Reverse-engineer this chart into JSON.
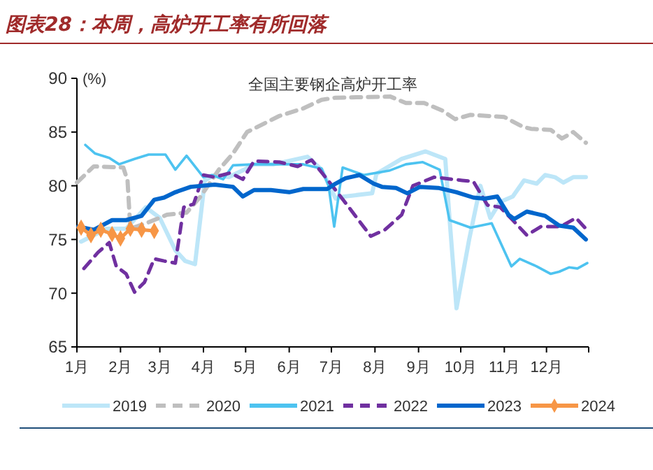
{
  "chart_data": {
    "type": "line",
    "title": "图表28：本周，高炉开工率有所回落",
    "subtitle": "全国主要钢企高炉开工率",
    "ylabel": "(%)",
    "xlim": [
      "--01-01",
      "--12-31"
    ],
    "xticks": [
      {
        "value": "--01-01",
        "label": "1月"
      },
      {
        "value": "--02-01",
        "label": "2月"
      },
      {
        "value": "--03-01",
        "label": "3月"
      },
      {
        "value": "--04-01",
        "label": "4月"
      },
      {
        "value": "--05-01",
        "label": "5月"
      },
      {
        "value": "--06-01",
        "label": "6月"
      },
      {
        "value": "--07-01",
        "label": "7月"
      },
      {
        "value": "--08-01",
        "label": "8月"
      },
      {
        "value": "--09-01",
        "label": "9月"
      },
      {
        "value": "--10-01",
        "label": "10月"
      },
      {
        "value": "--11-01",
        "label": "11月"
      },
      {
        "value": "--12-01",
        "label": "12月"
      },
      {
        "value": "--12-31",
        "label": null
      }
    ],
    "ylim": [
      65,
      90
    ],
    "yticks": [
      65,
      70,
      75,
      80,
      85,
      90
    ],
    "legend": "bottom",
    "series": [
      {
        "name": "2019",
        "color": "#bde6f8",
        "line_style": "solid",
        "x": [
          "--01-04",
          "--01-22",
          "--02-05",
          "--02-19",
          "--03-01",
          "--03-12",
          "--03-19",
          "--03-26",
          "--04-02",
          "--04-09",
          "--04-19",
          "--04-30",
          "--05-07",
          "--05-21",
          "--06-14",
          "--06-24",
          "--07-04",
          "--07-10",
          "--07-30",
          "--08-02",
          "--08-20",
          "--09-06",
          "--09-20",
          "--09-23",
          "--09-28",
          "--10-07",
          "--10-15",
          "--10-22",
          "--10-29",
          "--11-07",
          "--11-15",
          "--11-24",
          "--11-30",
          "--12-07",
          "--12-13",
          "--12-20",
          "--12-29"
        ],
        "values": [
          74.8,
          76,
          76,
          78,
          77,
          74,
          73,
          72.7,
          80.5,
          81,
          80.8,
          81.5,
          82,
          82,
          82.7,
          81.5,
          78.8,
          79,
          79.3,
          81.1,
          82.5,
          83.2,
          82.5,
          77,
          68.6,
          75,
          80,
          77,
          78.5,
          79,
          80.5,
          80.2,
          81,
          80.8,
          80.3,
          80.8,
          80.8
        ]
      },
      {
        "name": "2020",
        "color": "#bfbfbf",
        "line_style": "dashed",
        "x": [
          "--01-01",
          "--01-13",
          "--02-03",
          "--02-06",
          "--02-08",
          "--02-21",
          "--03-06",
          "--03-20",
          "--03-30",
          "--04-12",
          "--04-22",
          "--05-02",
          "--05-25",
          "--06-11",
          "--06-24",
          "--07-04",
          "--08-12",
          "--08-23",
          "--09-05",
          "--09-18",
          "--09-27",
          "--10-08",
          "--11-01",
          "--11-14",
          "--11-20",
          "--12-04",
          "--12-12",
          "--12-20",
          "--12-29"
        ],
        "values": [
          80.3,
          81.8,
          81.7,
          80.5,
          76,
          76.6,
          77.3,
          77.5,
          79,
          81.5,
          83,
          85,
          86.5,
          87.2,
          88,
          88.2,
          88.3,
          87.7,
          87.7,
          87,
          86.2,
          86.6,
          86.4,
          85.5,
          85.3,
          85.2,
          84.4,
          85,
          84
        ]
      },
      {
        "name": "2021",
        "color": "#4dc3f0",
        "line_style": "solid",
        "x": [
          "--01-07",
          "--01-14",
          "--01-24",
          "--01-31",
          "--02-11",
          "--02-21",
          "--03-05",
          "--03-12",
          "--03-20",
          "--04-01",
          "--04-07",
          "--04-15",
          "--04-22",
          "--05-08",
          "--05-25",
          "--06-11",
          "--06-24",
          "--06-29",
          "--07-03",
          "--07-09",
          "--07-24",
          "--08-11",
          "--08-23",
          "--09-04",
          "--09-16",
          "--09-23",
          "--10-08",
          "--10-23",
          "--11-06",
          "--11-12",
          "--11-24",
          "--12-04",
          "--12-10",
          "--12-17",
          "--12-23",
          "--12-30"
        ],
        "values": [
          83.8,
          83,
          82.6,
          82,
          82.5,
          82.9,
          82.9,
          81.5,
          82.8,
          80.8,
          81,
          80.6,
          81.9,
          82,
          82,
          82,
          81.6,
          80,
          76.2,
          81.7,
          81,
          81.4,
          82,
          82.2,
          81.5,
          76.8,
          76.1,
          76.5,
          72.5,
          73.2,
          72.5,
          71.8,
          72,
          72.4,
          72.3,
          72.8
        ]
      },
      {
        "name": "2022",
        "color": "#7030a0",
        "line_style": "dashed",
        "x": [
          "--01-06",
          "--01-16",
          "--01-24",
          "--01-29",
          "--02-05",
          "--02-11",
          "--02-18",
          "--02-25",
          "--03-04",
          "--03-12",
          "--03-18",
          "--03-25",
          "--04-01",
          "--04-09",
          "--04-20",
          "--04-29",
          "--05-07",
          "--05-25",
          "--06-07",
          "--06-17",
          "--07-01",
          "--07-14",
          "--07-29",
          "--08-08",
          "--08-20",
          "--08-28",
          "--09-12",
          "--10-02",
          "--10-10",
          "--10-20",
          "--10-29",
          "--11-07",
          "--11-17",
          "--11-27",
          "--12-11",
          "--12-22",
          "--12-29"
        ],
        "values": [
          72.3,
          73.8,
          74.7,
          72.5,
          71.8,
          70.1,
          71,
          73.2,
          73,
          72.8,
          78,
          78.3,
          81,
          80.8,
          81.2,
          80.6,
          82.3,
          82.2,
          81.8,
          82.4,
          80.1,
          77.9,
          75.3,
          75.9,
          77.3,
          80,
          80.8,
          80.5,
          80.4,
          78.2,
          78,
          76.8,
          75.4,
          76.2,
          76.2,
          77,
          76
        ]
      },
      {
        "name": "2023",
        "color": "#0066cc",
        "line_style": "solid",
        "x": [
          "--01-02",
          "--01-13",
          "--01-26",
          "--02-05",
          "--02-16",
          "--02-25",
          "--03-04",
          "--03-12",
          "--03-23",
          "--04-09",
          "--04-22",
          "--04-29",
          "--05-07",
          "--05-19",
          "--06-01",
          "--06-11",
          "--06-28",
          "--07-04",
          "--07-11",
          "--07-21",
          "--07-31",
          "--08-06",
          "--08-16",
          "--08-24",
          "--09-02",
          "--09-15",
          "--09-28",
          "--10-10",
          "--10-18",
          "--10-27",
          "--11-04",
          "--11-08",
          "--11-17",
          "--11-30",
          "--12-10",
          "--12-20",
          "--12-29"
        ],
        "values": [
          76.2,
          75.9,
          76.8,
          76.8,
          77.2,
          78.7,
          78.9,
          79.4,
          79.9,
          80.1,
          79.9,
          79,
          79.6,
          79.6,
          79.4,
          79.7,
          79.7,
          80.2,
          80.7,
          81,
          80.2,
          79.9,
          79.8,
          79.3,
          79.9,
          79.8,
          79.4,
          78.9,
          78.8,
          79,
          77.3,
          76.9,
          77.6,
          77.2,
          76.3,
          76.1,
          75
        ]
      },
      {
        "name": "2024",
        "color": "#f79646",
        "line_style": "solid",
        "marker": "diamond",
        "x": [
          "--01-04",
          "--01-11",
          "--01-18",
          "--01-26",
          "--02-01",
          "--02-08",
          "--02-16",
          "--02-25"
        ],
        "values": [
          76.1,
          75.4,
          75.9,
          75.5,
          75.1,
          76,
          75.9,
          75.8
        ]
      }
    ]
  }
}
